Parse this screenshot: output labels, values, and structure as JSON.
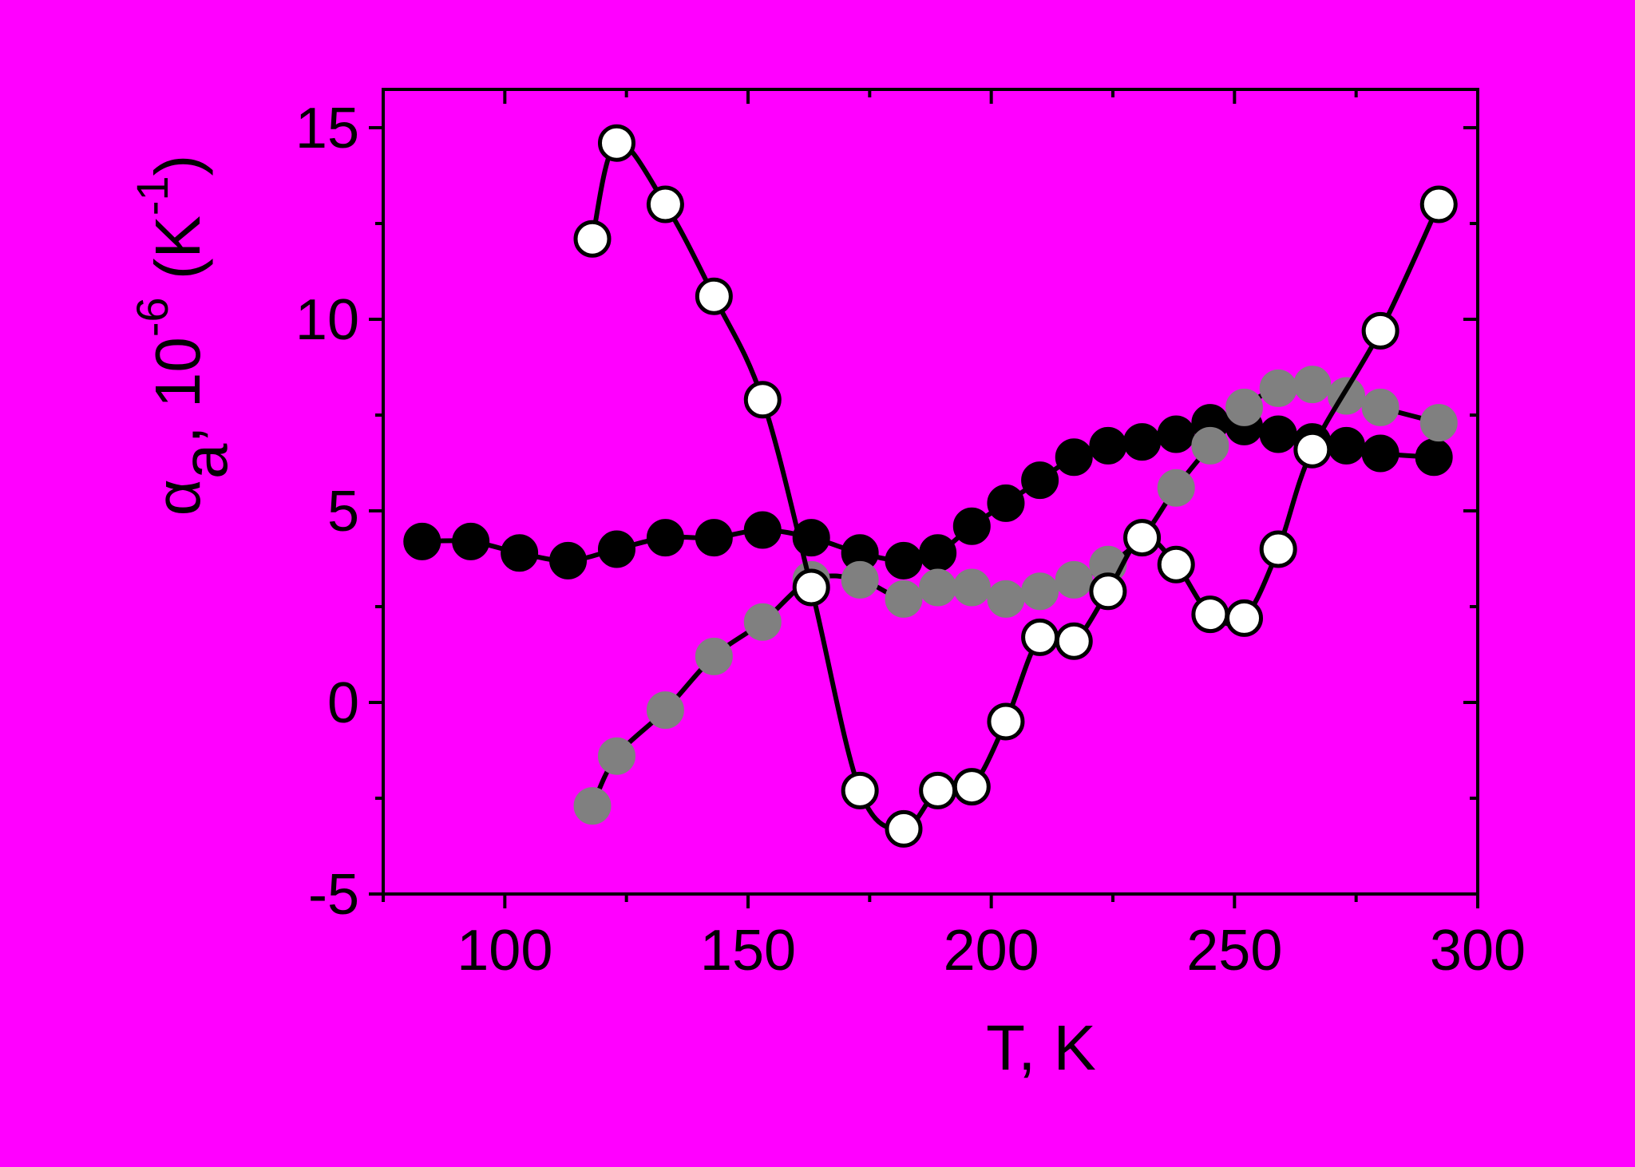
{
  "chart_data": {
    "type": "scatter",
    "background": "#ff00ff",
    "xlabel": "T, K",
    "ylabel": {
      "symbol": "α",
      "subscript": "a",
      "middle": ", 10",
      "exponent": "-6",
      "unit_open": " (K",
      "unit_exponent": "-1",
      "unit_close": ")"
    },
    "xlim": [
      75,
      300
    ],
    "ylim": [
      -5,
      16
    ],
    "x_ticks": [
      100,
      150,
      200,
      250,
      300
    ],
    "y_ticks": [
      -5,
      0,
      5,
      10,
      15
    ],
    "x_tick_labels": [
      "100",
      "150",
      "200",
      "250",
      "300"
    ],
    "y_tick_labels": [
      "-5",
      "0",
      "5",
      "10",
      "15"
    ],
    "grid": false,
    "legend": "none",
    "series": [
      {
        "marker_fill": "#000000",
        "marker_stroke": "#000000",
        "line": true,
        "x": [
          83,
          93,
          103,
          113,
          123,
          133,
          143,
          153,
          163,
          173,
          182,
          189,
          196,
          203,
          210,
          217,
          224,
          231,
          238,
          245,
          252,
          259,
          266,
          273,
          280,
          291
        ],
        "y": [
          4.2,
          4.2,
          3.9,
          3.7,
          4.0,
          4.3,
          4.3,
          4.5,
          4.3,
          3.9,
          3.7,
          3.9,
          4.6,
          5.2,
          5.8,
          6.4,
          6.7,
          6.8,
          7.0,
          7.3,
          7.2,
          7.0,
          6.8,
          6.7,
          6.5,
          6.4
        ]
      },
      {
        "marker_fill": "#808080",
        "marker_stroke": "#808080",
        "line": true,
        "x": [
          118,
          123,
          133,
          143,
          153,
          163,
          173,
          182,
          189,
          196,
          203,
          210,
          217,
          224,
          231,
          238,
          245,
          252,
          259,
          266,
          273,
          280,
          292
        ],
        "y": [
          -2.7,
          -1.4,
          -0.2,
          1.2,
          2.1,
          3.2,
          3.2,
          2.7,
          3.0,
          3.0,
          2.7,
          2.9,
          3.2,
          3.6,
          4.3,
          5.6,
          6.7,
          7.7,
          8.2,
          8.3,
          8.0,
          7.7,
          7.3
        ]
      },
      {
        "marker_fill": "#ffffff",
        "marker_stroke": "#000000",
        "line": true,
        "x": [
          118,
          123,
          133,
          143,
          153,
          163,
          173,
          182,
          189,
          196,
          203,
          210,
          217,
          224,
          231,
          238,
          245,
          252,
          259,
          266,
          280,
          292
        ],
        "y": [
          12.1,
          14.6,
          13.0,
          10.6,
          7.9,
          3.0,
          -2.3,
          -3.3,
          -2.3,
          -2.2,
          -0.5,
          1.7,
          1.6,
          2.9,
          4.3,
          3.6,
          2.3,
          2.2,
          4.0,
          6.6,
          9.7,
          13.0
        ]
      }
    ]
  }
}
